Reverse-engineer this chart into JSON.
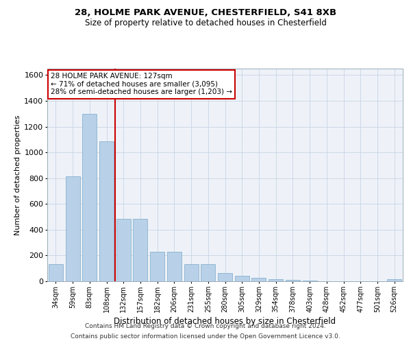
{
  "title1": "28, HOLME PARK AVENUE, CHESTERFIELD, S41 8XB",
  "title2": "Size of property relative to detached houses in Chesterfield",
  "xlabel": "Distribution of detached houses by size in Chesterfield",
  "ylabel": "Number of detached properties",
  "categories": [
    "34sqm",
    "59sqm",
    "83sqm",
    "108sqm",
    "132sqm",
    "157sqm",
    "182sqm",
    "206sqm",
    "231sqm",
    "255sqm",
    "280sqm",
    "305sqm",
    "329sqm",
    "354sqm",
    "378sqm",
    "403sqm",
    "428sqm",
    "452sqm",
    "477sqm",
    "501sqm",
    "526sqm"
  ],
  "values": [
    135,
    815,
    1300,
    1085,
    485,
    485,
    230,
    230,
    135,
    135,
    65,
    40,
    28,
    15,
    12,
    5,
    0,
    0,
    0,
    0,
    15
  ],
  "bar_color": "#b8d0e8",
  "bar_edge_color": "#7aaac8",
  "vline_x": 3.5,
  "vline_color": "#cc0000",
  "ylim": [
    0,
    1650
  ],
  "yticks": [
    0,
    200,
    400,
    600,
    800,
    1000,
    1200,
    1400,
    1600
  ],
  "annotation_title": "28 HOLME PARK AVENUE: 127sqm",
  "annotation_line1": "← 71% of detached houses are smaller (3,095)",
  "annotation_line2": "28% of semi-detached houses are larger (1,203) →",
  "annotation_box_color": "#cc0000",
  "bg_color": "#eef2f8",
  "footer1": "Contains HM Land Registry data © Crown copyright and database right 2024.",
  "footer2": "Contains public sector information licensed under the Open Government Licence v3.0."
}
